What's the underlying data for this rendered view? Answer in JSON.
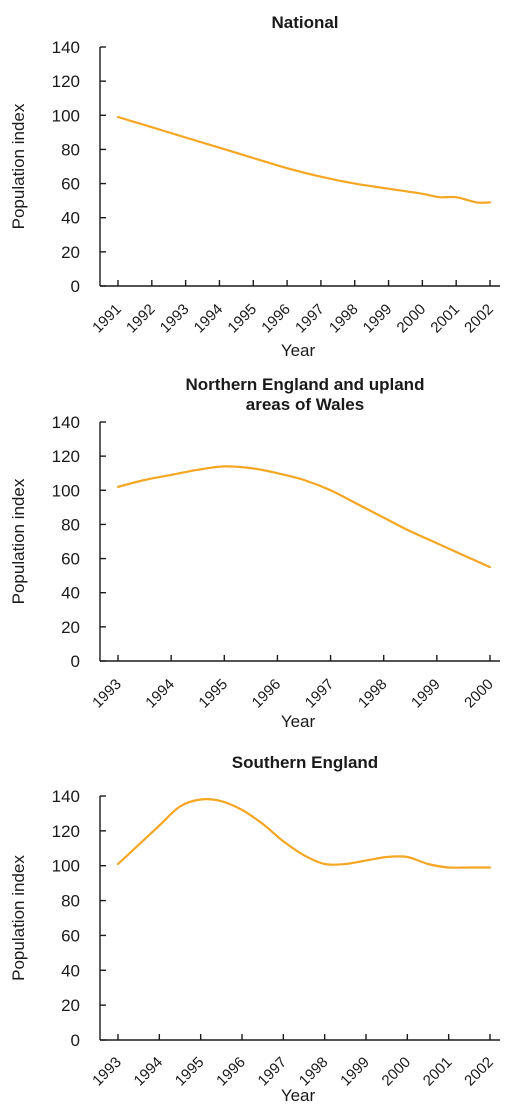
{
  "chart_data": [
    {
      "type": "line",
      "title": "National",
      "xlabel": "Year",
      "ylabel": "Population index",
      "yticks": [
        "0",
        "20",
        "40",
        "60",
        "80",
        "100",
        "120",
        "140"
      ],
      "ylim": [
        0,
        140
      ],
      "categories": [
        "1991",
        "1992",
        "1993",
        "1994",
        "1995",
        "1996",
        "1997",
        "1998",
        "1999",
        "2000",
        "2001",
        "2002"
      ],
      "series": [
        {
          "x": [
            1991.0,
            1992.0,
            1993.0,
            1994.0,
            1995.0,
            1996.0,
            1997.0,
            1998.0,
            1999.0,
            2000.0,
            2000.5,
            2001.0,
            2001.6,
            2002.0
          ],
          "values": [
            99,
            93,
            87,
            81,
            75,
            69,
            64,
            60,
            57,
            54,
            52,
            52,
            49,
            49
          ]
        }
      ],
      "line_color": "#f5a623",
      "grid": false
    },
    {
      "type": "line",
      "title": "Northern England and upland areas of Wales",
      "xlabel": "Year",
      "ylabel": "Population index",
      "yticks": [
        "0",
        "20",
        "40",
        "60",
        "80",
        "100",
        "120",
        "140"
      ],
      "ylim": [
        0,
        140
      ],
      "categories": [
        "1993",
        "1994",
        "1995",
        "1996",
        "1997",
        "1998",
        "1999",
        "2000"
      ],
      "series": [
        {
          "x": [
            1993.0,
            1993.5,
            1994.0,
            1994.5,
            1995.0,
            1995.5,
            1996.0,
            1996.5,
            1997.0,
            1997.5,
            1998.0,
            1998.5,
            1999.0,
            1999.5,
            2000.0
          ],
          "values": [
            102,
            106,
            109,
            112,
            114,
            113,
            110,
            106,
            100,
            92,
            84,
            76,
            69,
            62,
            55
          ]
        }
      ],
      "line_color": "#f5a623",
      "grid": false
    },
    {
      "type": "line",
      "title": "Southern England",
      "xlabel": "Year",
      "ylabel": "Population index",
      "yticks": [
        "0",
        "20",
        "40",
        "60",
        "80",
        "100",
        "120",
        "140"
      ],
      "ylim": [
        0,
        140
      ],
      "categories": [
        "1993",
        "1994",
        "1995",
        "1996",
        "1997",
        "1998",
        "1999",
        "2000",
        "2001",
        "2002"
      ],
      "series": [
        {
          "x": [
            1993.0,
            1993.5,
            1994.0,
            1994.5,
            1995.0,
            1995.5,
            1996.0,
            1996.5,
            1997.0,
            1997.5,
            1998.0,
            1998.5,
            1999.0,
            1999.5,
            2000.0,
            2000.5,
            2001.0,
            2001.5,
            2002.0
          ],
          "values": [
            101,
            112,
            123,
            134,
            138,
            137,
            132,
            124,
            114,
            106,
            101,
            101,
            103,
            105,
            105,
            101,
            99,
            99,
            99
          ]
        }
      ],
      "line_color": "#f5a623",
      "grid": false
    }
  ]
}
